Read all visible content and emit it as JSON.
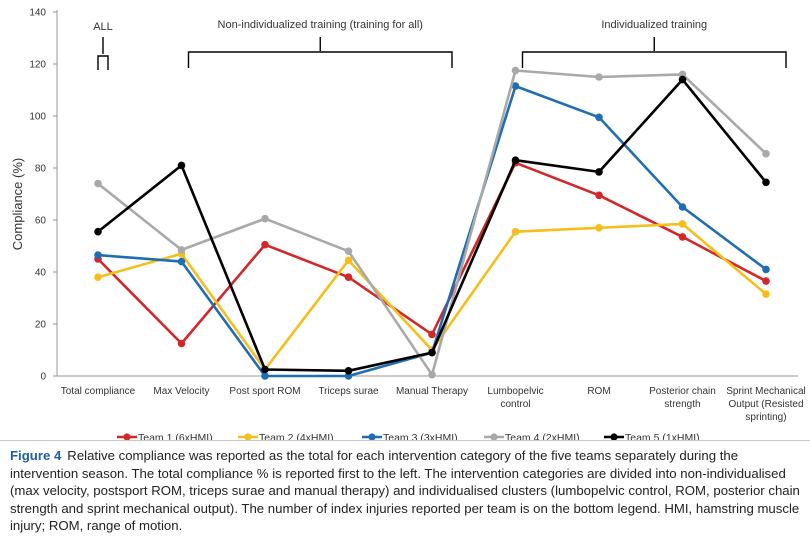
{
  "chart_data": {
    "type": "line",
    "ylabel": "Compliance (%)",
    "xlabel": "",
    "ylim": [
      0,
      140
    ],
    "yticks": [
      0,
      20,
      40,
      60,
      80,
      100,
      120,
      140
    ],
    "categories": [
      [
        "Total compliance"
      ],
      [
        "Max Velocity"
      ],
      [
        "Post sport ROM"
      ],
      [
        "Triceps surae"
      ],
      [
        "Manual Therapy"
      ],
      [
        "Lumbopelvic",
        "control"
      ],
      [
        "ROM"
      ],
      [
        "Posterior chain",
        "strength"
      ],
      [
        "Sprint Mechanical",
        "Output (Resisted",
        "sprinting)"
      ]
    ],
    "series": [
      {
        "name": "Team 1 (6xHMI)",
        "color": "#d62728",
        "values": [
          45,
          12.5,
          50.5,
          38,
          16,
          82,
          69.5,
          53.5,
          36.5
        ]
      },
      {
        "name": "Team 2 (4xHMI)",
        "color": "#f5be1a",
        "values": [
          38,
          47,
          2.5,
          44.5,
          10,
          55.5,
          57,
          58.5,
          31.5
        ]
      },
      {
        "name": "Team 3 (3xHMI)",
        "color": "#1f6eb4",
        "values": [
          46.5,
          44,
          0,
          0,
          9,
          111.5,
          99.5,
          65,
          41
        ]
      },
      {
        "name": "Team 4 (2xHMI)",
        "color": "#a9a9a9",
        "values": [
          74,
          48.5,
          60.5,
          48,
          0.5,
          117.5,
          115,
          116,
          85.5
        ]
      },
      {
        "name": "Team 5 (1xHMI)",
        "color": "#000000",
        "values": [
          55.5,
          81,
          2.5,
          2,
          9,
          83,
          78.5,
          114,
          74.5
        ]
      }
    ],
    "annotations": [
      {
        "label": "ALL",
        "from": 0,
        "to": 0
      },
      {
        "label": "Non-individualized training (training for all)",
        "from": 1,
        "to": 4
      },
      {
        "label": "Individualized training",
        "from": 5,
        "to": 8
      }
    ]
  },
  "caption": {
    "figure_label": "Figure 4",
    "text": "Relative compliance was reported as the total for each intervention category of the five teams separately during the intervention season. The total compliance % is reported first to the left. The intervention categories are divided into non-individualised (max velocity, postsport ROM, triceps surae and manual therapy) and individualised clusters (lumbopelvic control, ROM, posterior chain strength and sprint mechanical output). The number of index injuries reported per team is on the bottom legend. HMI, hamstring muscle injury; ROM, range of motion."
  }
}
